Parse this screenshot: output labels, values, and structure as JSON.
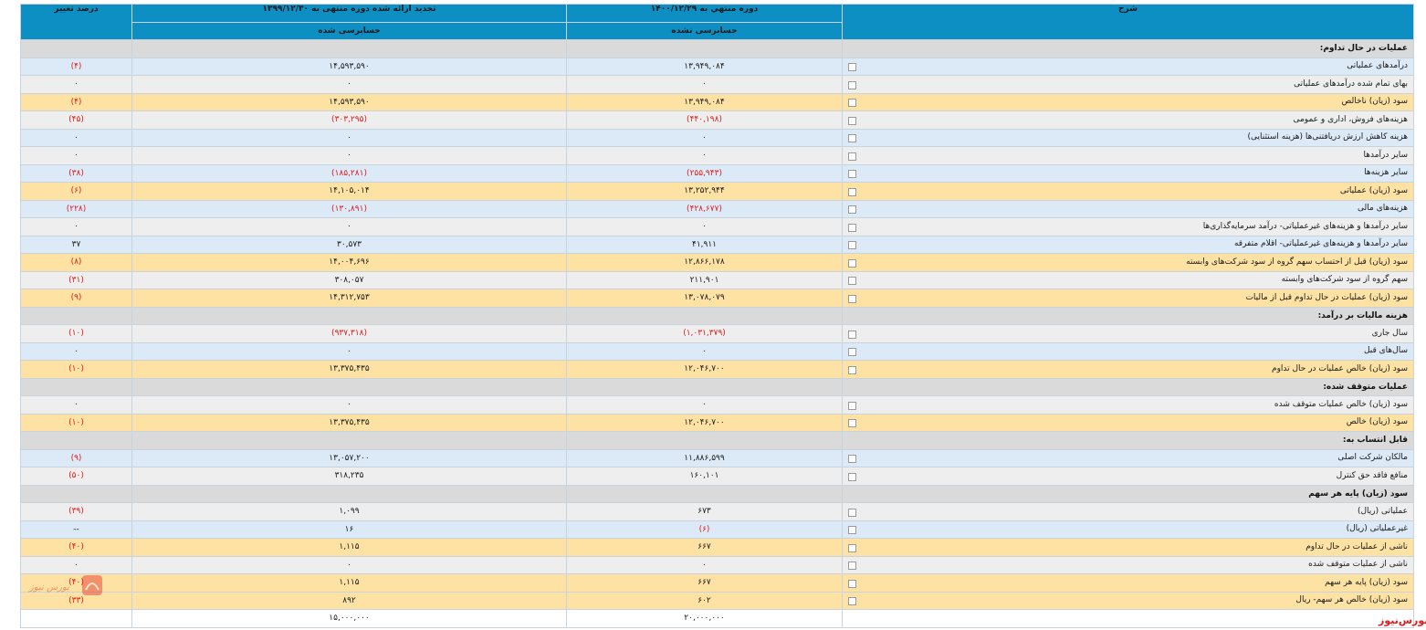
{
  "header": {
    "col_desc": "شرح",
    "col_current": "دوره منتهي به ۱۴۰۰/۱۲/۲۹",
    "col_prior": "تجدید ارائه شده دوره منتهی به ۱۳۹۹/۱۲/۳۰",
    "col_change": "درصد تغییر",
    "sub_current": "حسابرسی نشده",
    "sub_prior": "حسابرسی شده"
  },
  "rows": [
    {
      "type": "sec",
      "desc": "عملیات در حال تداوم:",
      "current": "",
      "prior": "",
      "change": ""
    },
    {
      "type": "blue",
      "desc": "درآمدهای عملیاتی",
      "current": "۱۳,۹۴۹,۰۸۴",
      "prior": "۱۴,۵۹۳,۵۹۰",
      "change": "(۴)",
      "neg": [
        false,
        false,
        true
      ]
    },
    {
      "type": "gray",
      "desc": "بهای تمام شده درآمدهای عملیاتی",
      "current": "۰",
      "prior": "۰",
      "change": "۰",
      "neg": [
        false,
        false,
        false
      ]
    },
    {
      "type": "yellow",
      "desc": "سود (زیان) ناخالص",
      "current": "۱۳,۹۴۹,۰۸۴",
      "prior": "۱۴,۵۹۳,۵۹۰",
      "change": "(۴)",
      "neg": [
        false,
        false,
        true
      ]
    },
    {
      "type": "gray",
      "desc": "هزینه‌های فروش، اداری و عمومی",
      "current": "(۴۴۰,۱۹۸)",
      "prior": "(۳۰۳,۲۹۵)",
      "change": "(۴۵)",
      "neg": [
        true,
        true,
        true
      ]
    },
    {
      "type": "blue",
      "desc": "هزینه کاهش ارزش دریافتنی‌ها (هزینه استثنایی)",
      "current": "۰",
      "prior": "۰",
      "change": "۰",
      "neg": [
        false,
        false,
        false
      ]
    },
    {
      "type": "gray",
      "desc": "سایر درآمدها",
      "current": "۰",
      "prior": "۰",
      "change": "۰",
      "neg": [
        false,
        false,
        false
      ]
    },
    {
      "type": "blue",
      "desc": "سایر هزینه‌ها",
      "current": "(۲۵۵,۹۴۳)",
      "prior": "(۱۸۵,۲۸۱)",
      "change": "(۳۸)",
      "neg": [
        true,
        true,
        true
      ]
    },
    {
      "type": "yellow",
      "desc": "سود (زیان) عملیاتی",
      "current": "۱۳,۲۵۲,۹۴۴",
      "prior": "۱۴,۱۰۵,۰۱۴",
      "change": "(۶)",
      "neg": [
        false,
        false,
        true
      ]
    },
    {
      "type": "blue",
      "desc": "هزینه‌های مالی",
      "current": "(۴۲۸,۶۷۷)",
      "prior": "(۱۳۰,۸۹۱)",
      "change": "(۲۲۸)",
      "neg": [
        true,
        true,
        true
      ]
    },
    {
      "type": "gray",
      "desc": "سایر درآمدها و هزینه‌های غیرعملیاتی- درآمد سرمایه‌گذاری‌ها",
      "current": "۰",
      "prior": "۰",
      "change": "۰",
      "neg": [
        false,
        false,
        false
      ]
    },
    {
      "type": "blue",
      "desc": "سایر درآمدها و هزینه‌های غیرعملیاتی- اقلام متفرقه",
      "current": "۴۱,۹۱۱",
      "prior": "۳۰,۵۷۳",
      "change": "۳۷",
      "neg": [
        false,
        false,
        false
      ]
    },
    {
      "type": "yellow",
      "desc": "سود (زیان) قبل از احتساب سهم گروه از سود شرکت‌های وابسته",
      "current": "۱۲,۸۶۶,۱۷۸",
      "prior": "۱۴,۰۰۴,۶۹۶",
      "change": "(۸)",
      "neg": [
        false,
        false,
        true
      ]
    },
    {
      "type": "gray",
      "desc": "سهم گروه از سود شرکت‌های وابسته",
      "current": "۲۱۱,۹۰۱",
      "prior": "۳۰۸,۰۵۷",
      "change": "(۳۱)",
      "neg": [
        false,
        false,
        true
      ]
    },
    {
      "type": "yellow",
      "desc": "سود (زیان) عملیات در حال تداوم قبل از مالیات",
      "current": "۱۳,۰۷۸,۰۷۹",
      "prior": "۱۴,۳۱۲,۷۵۳",
      "change": "(۹)",
      "neg": [
        false,
        false,
        true
      ]
    },
    {
      "type": "sec",
      "desc": "هزینه مالیات بر درآمد:",
      "current": "",
      "prior": "",
      "change": ""
    },
    {
      "type": "gray",
      "desc": "سال جاری",
      "current": "(۱,۰۳۱,۳۷۹)",
      "prior": "(۹۳۷,۳۱۸)",
      "change": "(۱۰)",
      "neg": [
        true,
        true,
        true
      ]
    },
    {
      "type": "blue",
      "desc": "سال‌های قبل",
      "current": "۰",
      "prior": "۰",
      "change": "۰",
      "neg": [
        false,
        false,
        false
      ]
    },
    {
      "type": "yellow",
      "desc": "سود (زیان) خالص عملیات در حال تداوم",
      "current": "۱۲,۰۴۶,۷۰۰",
      "prior": "۱۳,۳۷۵,۴۳۵",
      "change": "(۱۰)",
      "neg": [
        false,
        false,
        true
      ]
    },
    {
      "type": "sec",
      "desc": "عملیات متوقف شده:",
      "current": "",
      "prior": "",
      "change": ""
    },
    {
      "type": "gray",
      "desc": "سود (زیان) خالص عملیات متوقف شده",
      "current": "۰",
      "prior": "۰",
      "change": "۰",
      "neg": [
        false,
        false,
        false
      ]
    },
    {
      "type": "yellow",
      "desc": "سود (زیان) خالص",
      "current": "۱۲,۰۴۶,۷۰۰",
      "prior": "۱۳,۳۷۵,۴۳۵",
      "change": "(۱۰)",
      "neg": [
        false,
        false,
        true
      ]
    },
    {
      "type": "sec",
      "desc": "قابل انتساب به:",
      "current": "",
      "prior": "",
      "change": ""
    },
    {
      "type": "blue",
      "desc": "مالکان شرکت اصلی",
      "current": "۱۱,۸۸۶,۵۹۹",
      "prior": "۱۳,۰۵۷,۲۰۰",
      "change": "(۹)",
      "neg": [
        false,
        false,
        true
      ]
    },
    {
      "type": "gray",
      "desc": "منافع فاقد حق کنترل",
      "current": "۱۶۰,۱۰۱",
      "prior": "۳۱۸,۲۳۵",
      "change": "(۵۰)",
      "neg": [
        false,
        false,
        true
      ]
    },
    {
      "type": "sec",
      "desc": "سود (زیان) پایه هر سهم",
      "current": "",
      "prior": "",
      "change": ""
    },
    {
      "type": "gray",
      "desc": "عملیاتی (ریال)",
      "current": "۶۷۳",
      "prior": "۱,۰۹۹",
      "change": "(۳۹)",
      "neg": [
        false,
        false,
        true
      ]
    },
    {
      "type": "blue",
      "desc": "غیرعملیاتی (ریال)",
      "current": "(۶)",
      "prior": "۱۶",
      "change": "--",
      "neg": [
        true,
        false,
        false
      ]
    },
    {
      "type": "yellow",
      "desc": "ناشی از عملیات در حال تداوم",
      "current": "۶۶۷",
      "prior": "۱,۱۱۵",
      "change": "(۴۰)",
      "neg": [
        false,
        false,
        true
      ]
    },
    {
      "type": "gray",
      "desc": "ناشی از عملیات متوقف شده",
      "current": "۰",
      "prior": "۰",
      "change": "۰",
      "neg": [
        false,
        false,
        false
      ]
    },
    {
      "type": "yellow",
      "desc": "سود (زیان) پایه هر سهم",
      "current": "۶۶۷",
      "prior": "۱,۱۱۵",
      "change": "(۴۰)",
      "neg": [
        false,
        false,
        true
      ]
    },
    {
      "type": "yellow",
      "desc": "سود (زیان) خالص هر سهم- ریال",
      "current": "۶۰۲",
      "prior": "۸۹۲",
      "change": "(۳۳)",
      "neg": [
        false,
        false,
        true
      ]
    },
    {
      "type": "white",
      "desc": "",
      "current": "۲۰,۰۰۰,۰۰۰",
      "prior": "۱۵,۰۰۰,۰۰۰",
      "change": "",
      "neg": [
        false,
        false,
        false
      ]
    }
  ],
  "brand": "بورس‌نیوز",
  "watermark": "بورس نیوز",
  "colors": {
    "header": "#0e8fc4",
    "section": "#dadada",
    "blue_row": "#dce9f6",
    "gray_row": "#eeeeee",
    "yellow_row": "#fde2a4",
    "negative": "#e01b1b"
  }
}
